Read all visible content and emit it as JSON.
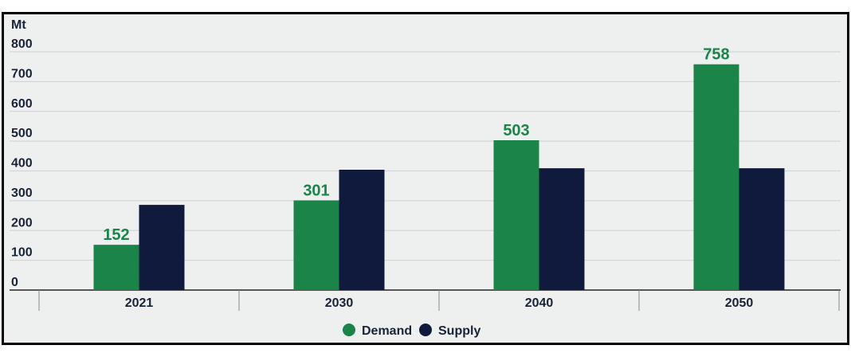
{
  "chart_data": {
    "type": "bar",
    "title": "",
    "ylabel": "Mt",
    "xlabel": "",
    "ylim": [
      0,
      800
    ],
    "yticks": [
      "0",
      "100",
      "200",
      "300",
      "400",
      "500",
      "600",
      "700",
      "800"
    ],
    "grid": true,
    "categories": [
      "2021",
      "2030",
      "2040",
      "2050"
    ],
    "series": [
      {
        "name": "Demand",
        "color": "#1a8449",
        "values": [
          152,
          301,
          503,
          758
        ],
        "labels": [
          "152",
          "301",
          "503",
          "758"
        ]
      },
      {
        "name": "Supply",
        "color": "#0f1a3d",
        "values": [
          286,
          404,
          409,
          409
        ]
      }
    ],
    "legend_position": "bottom-center"
  }
}
